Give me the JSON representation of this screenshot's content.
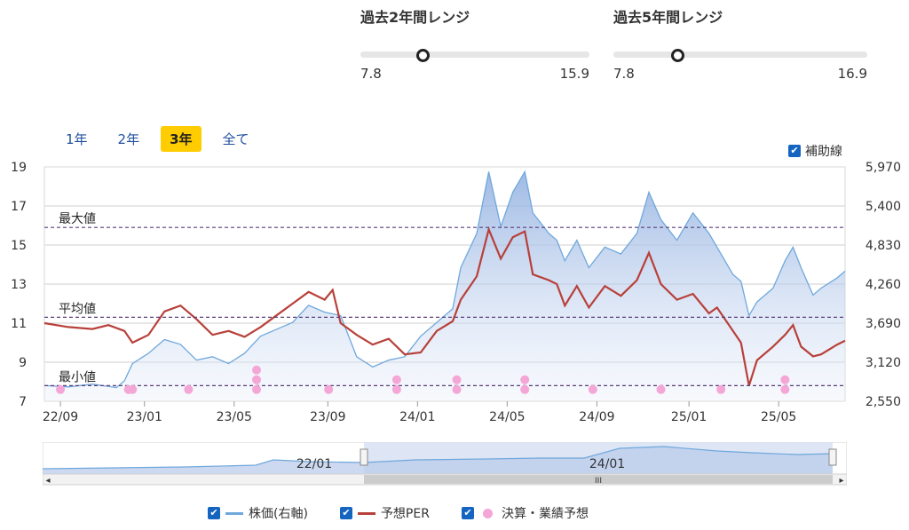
{
  "ranges": [
    {
      "title": "過去2年間レンジ",
      "min": "7.8",
      "max": "15.9",
      "position": 0.27
    },
    {
      "title": "過去5年間レンジ",
      "min": "7.8",
      "max": "16.9",
      "position": 0.25
    }
  ],
  "tabs": [
    {
      "label": "1年",
      "active": false
    },
    {
      "label": "2年",
      "active": false
    },
    {
      "label": "3年",
      "active": true
    },
    {
      "label": "全て",
      "active": false
    }
  ],
  "guide_toggle": {
    "label": "補助線",
    "checked": true
  },
  "legend": [
    {
      "label": "株価(右軸)",
      "checked": true,
      "color": "#6fa8dc"
    },
    {
      "label": "予想PER",
      "checked": true,
      "color": "#b8403a"
    },
    {
      "label": "決算・業績予想",
      "checked": true,
      "color": "#f4a6d7"
    }
  ],
  "navigator": {
    "labels": [
      "22/01",
      "24/01"
    ],
    "grip": "III",
    "left_arrow": "◂",
    "right_arrow": "▸"
  },
  "chart_data": {
    "type": "line",
    "x_ticks": [
      "22/09",
      "23/01",
      "23/05",
      "23/09",
      "24/01",
      "24/05",
      "24/09",
      "25/01",
      "25/05"
    ],
    "left_axis": {
      "ticks": [
        "7",
        "9",
        "11",
        "13",
        "15",
        "17",
        "19"
      ],
      "range": [
        7,
        19
      ]
    },
    "right_axis": {
      "ticks": [
        "2,550",
        "3,120",
        "3,690",
        "4,260",
        "4,830",
        "5,400",
        "5,970"
      ],
      "range": [
        2550,
        5970
      ]
    },
    "reference_lines": [
      {
        "label": "最大値",
        "value": 15.9
      },
      {
        "label": "平均値",
        "value": 11.3
      },
      {
        "label": "最小値",
        "value": 7.8
      }
    ],
    "series": [
      {
        "name": "株価(右軸)",
        "axis": "right",
        "color": "#6fa8dc",
        "values": [
          [
            0,
            2780
          ],
          [
            0.03,
            2760
          ],
          [
            0.06,
            2800
          ],
          [
            0.09,
            2750
          ],
          [
            0.1,
            2850
          ],
          [
            0.11,
            3100
          ],
          [
            0.13,
            3250
          ],
          [
            0.15,
            3450
          ],
          [
            0.17,
            3380
          ],
          [
            0.19,
            3150
          ],
          [
            0.21,
            3200
          ],
          [
            0.23,
            3100
          ],
          [
            0.25,
            3250
          ],
          [
            0.27,
            3500
          ],
          [
            0.29,
            3600
          ],
          [
            0.31,
            3700
          ],
          [
            0.33,
            3950
          ],
          [
            0.35,
            3850
          ],
          [
            0.37,
            3800
          ],
          [
            0.39,
            3200
          ],
          [
            0.41,
            3050
          ],
          [
            0.43,
            3150
          ],
          [
            0.45,
            3200
          ],
          [
            0.47,
            3500
          ],
          [
            0.49,
            3700
          ],
          [
            0.51,
            3900
          ],
          [
            0.52,
            4500
          ],
          [
            0.54,
            5000
          ],
          [
            0.555,
            5900
          ],
          [
            0.57,
            5100
          ],
          [
            0.585,
            5600
          ],
          [
            0.6,
            5900
          ],
          [
            0.61,
            5300
          ],
          [
            0.63,
            5000
          ],
          [
            0.64,
            4900
          ],
          [
            0.65,
            4600
          ],
          [
            0.665,
            4900
          ],
          [
            0.68,
            4500
          ],
          [
            0.7,
            4800
          ],
          [
            0.72,
            4700
          ],
          [
            0.74,
            5000
          ],
          [
            0.755,
            5600
          ],
          [
            0.77,
            5200
          ],
          [
            0.79,
            4900
          ],
          [
            0.81,
            5300
          ],
          [
            0.83,
            5000
          ],
          [
            0.84,
            4800
          ],
          [
            0.86,
            4400
          ],
          [
            0.87,
            4300
          ],
          [
            0.88,
            3800
          ],
          [
            0.89,
            4000
          ],
          [
            0.91,
            4200
          ],
          [
            0.925,
            4600
          ],
          [
            0.935,
            4800
          ],
          [
            0.945,
            4500
          ],
          [
            0.96,
            4100
          ],
          [
            0.97,
            4200
          ],
          [
            0.99,
            4350
          ],
          [
            1.0,
            4450
          ]
        ]
      },
      {
        "name": "予想PER",
        "axis": "left",
        "color": "#b8403a",
        "values": [
          [
            0,
            11.0
          ],
          [
            0.03,
            10.8
          ],
          [
            0.06,
            10.7
          ],
          [
            0.08,
            10.9
          ],
          [
            0.1,
            10.6
          ],
          [
            0.11,
            10.0
          ],
          [
            0.13,
            10.4
          ],
          [
            0.15,
            11.6
          ],
          [
            0.17,
            11.9
          ],
          [
            0.19,
            11.2
          ],
          [
            0.21,
            10.4
          ],
          [
            0.23,
            10.6
          ],
          [
            0.25,
            10.3
          ],
          [
            0.27,
            10.8
          ],
          [
            0.29,
            11.4
          ],
          [
            0.31,
            12.0
          ],
          [
            0.33,
            12.6
          ],
          [
            0.35,
            12.2
          ],
          [
            0.36,
            12.7
          ],
          [
            0.37,
            11.0
          ],
          [
            0.39,
            10.4
          ],
          [
            0.41,
            9.9
          ],
          [
            0.43,
            10.2
          ],
          [
            0.45,
            9.4
          ],
          [
            0.47,
            9.5
          ],
          [
            0.49,
            10.6
          ],
          [
            0.51,
            11.1
          ],
          [
            0.52,
            12.2
          ],
          [
            0.54,
            13.4
          ],
          [
            0.555,
            15.8
          ],
          [
            0.57,
            14.3
          ],
          [
            0.585,
            15.4
          ],
          [
            0.6,
            15.7
          ],
          [
            0.61,
            13.5
          ],
          [
            0.63,
            13.2
          ],
          [
            0.64,
            13.0
          ],
          [
            0.65,
            11.9
          ],
          [
            0.665,
            12.9
          ],
          [
            0.68,
            11.8
          ],
          [
            0.7,
            12.9
          ],
          [
            0.72,
            12.4
          ],
          [
            0.74,
            13.2
          ],
          [
            0.755,
            14.6
          ],
          [
            0.77,
            13.0
          ],
          [
            0.79,
            12.2
          ],
          [
            0.81,
            12.5
          ],
          [
            0.83,
            11.5
          ],
          [
            0.84,
            11.8
          ],
          [
            0.86,
            10.6
          ],
          [
            0.87,
            10.0
          ],
          [
            0.88,
            7.8
          ],
          [
            0.89,
            9.1
          ],
          [
            0.91,
            9.8
          ],
          [
            0.925,
            10.4
          ],
          [
            0.935,
            10.9
          ],
          [
            0.945,
            9.8
          ],
          [
            0.96,
            9.3
          ],
          [
            0.97,
            9.4
          ],
          [
            0.99,
            9.9
          ],
          [
            1.0,
            10.1
          ]
        ]
      },
      {
        "name": "決算・業績予想",
        "type": "scatter",
        "axis": "left",
        "color": "#f4a6d7",
        "values": [
          [
            0.02,
            7.6
          ],
          [
            0.105,
            7.6
          ],
          [
            0.11,
            7.6
          ],
          [
            0.18,
            7.6
          ],
          [
            0.265,
            7.6
          ],
          [
            0.265,
            8.1
          ],
          [
            0.265,
            8.6
          ],
          [
            0.355,
            7.6
          ],
          [
            0.44,
            7.6
          ],
          [
            0.44,
            8.1
          ],
          [
            0.515,
            7.6
          ],
          [
            0.515,
            8.1
          ],
          [
            0.6,
            7.6
          ],
          [
            0.6,
            8.1
          ],
          [
            0.685,
            7.6
          ],
          [
            0.77,
            7.6
          ],
          [
            0.845,
            7.6
          ],
          [
            0.925,
            7.6
          ],
          [
            0.925,
            8.1
          ]
        ]
      }
    ]
  }
}
